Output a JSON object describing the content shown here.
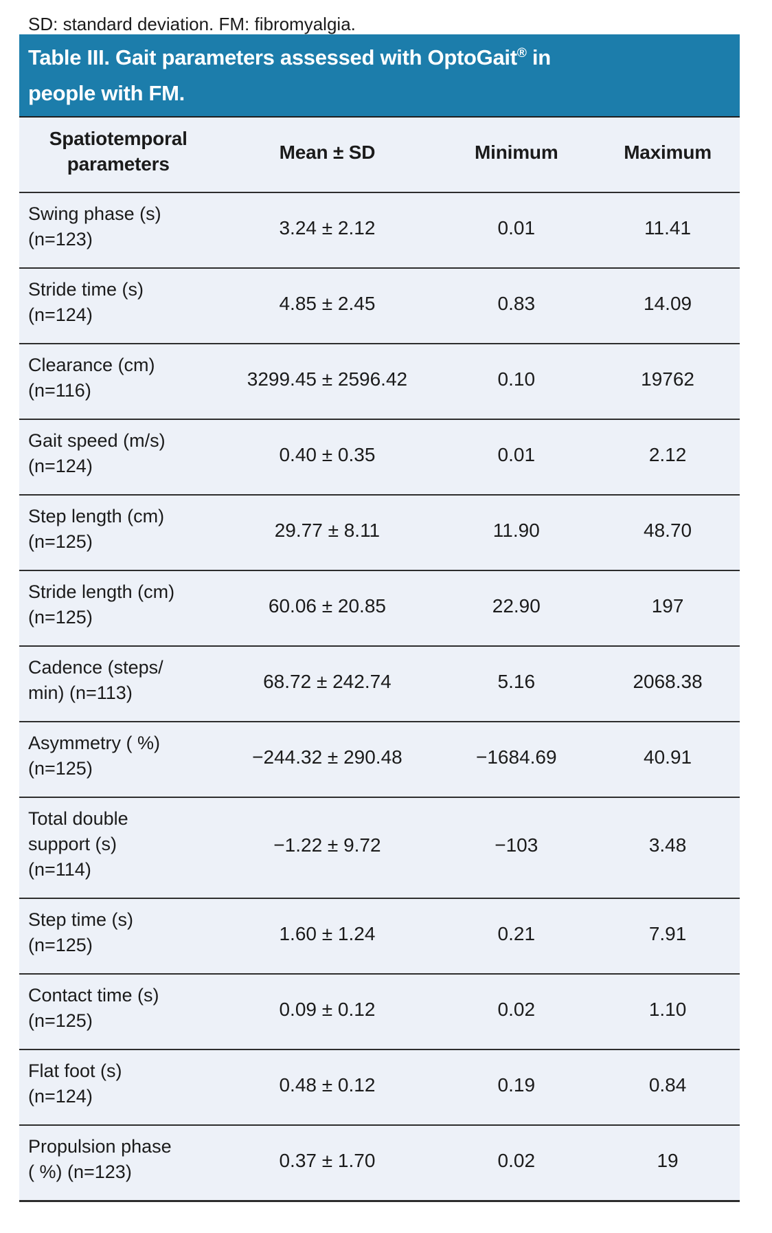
{
  "title": {
    "pre": "Table III. Gait parameters assessed with OptoGait",
    "sup": "®",
    "post": " in",
    "line2": "people with FM."
  },
  "header": {
    "param": [
      "Spatiotemporal",
      "parameters"
    ],
    "mean": "Mean ± SD",
    "min": "Minimum",
    "max": "Maximum"
  },
  "rows": [
    {
      "param": [
        "Swing phase (s)",
        "(n=123)"
      ],
      "mean": "3.24 ± 2.12",
      "min": "0.01",
      "max": "11.41"
    },
    {
      "param": [
        "Stride time (s)",
        "(n=124)"
      ],
      "mean": "4.85 ± 2.45",
      "min": "0.83",
      "max": "14.09"
    },
    {
      "param": [
        "Clearance (cm)",
        "(n=116)"
      ],
      "mean": "3299.45 ± 2596.42",
      "min": "0.10",
      "max": "19762"
    },
    {
      "param": [
        "Gait speed (m/s)",
        "(n=124)"
      ],
      "mean": "0.40 ± 0.35",
      "min": "0.01",
      "max": "2.12"
    },
    {
      "param": [
        "Step length (cm)",
        "(n=125)"
      ],
      "mean": "29.77 ± 8.11",
      "min": "11.90",
      "max": "48.70"
    },
    {
      "param": [
        "Stride length (cm)",
        "(n=125)"
      ],
      "mean": "60.06 ± 20.85",
      "min": "22.90",
      "max": "197"
    },
    {
      "param": [
        "Cadence (steps/",
        "min) (n=113)"
      ],
      "mean": "68.72 ± 242.74",
      "min": "5.16",
      "max": "2068.38"
    },
    {
      "param": [
        "Asymmetry ( %)",
        "(n=125)"
      ],
      "mean": "−244.32 ± 290.48",
      "min": "−1684.69",
      "max": "40.91"
    },
    {
      "param": [
        "Total double",
        "support (s)",
        "(n=114)"
      ],
      "mean": "−1.22 ± 9.72",
      "min": "−103",
      "max": "3.48"
    },
    {
      "param": [
        "Step time (s)",
        "(n=125)"
      ],
      "mean": "1.60 ± 1.24",
      "min": "0.21",
      "max": "7.91"
    },
    {
      "param": [
        "Contact time (s)",
        "(n=125)"
      ],
      "mean": "0.09 ± 0.12",
      "min": "0.02",
      "max": "1.10"
    },
    {
      "param": [
        "Flat foot (s)",
        "(n=124)"
      ],
      "mean": "0.48 ± 0.12",
      "min": "0.19",
      "max": "0.84"
    },
    {
      "param": [
        "Propulsion phase",
        "( %) (n=123)"
      ],
      "mean": "0.37 ± 1.70",
      "min": "0.02",
      "max": "19"
    }
  ],
  "footnote": "SD: standard deviation. FM: fibromyalgia.",
  "colors": {
    "header_bg": "#1c7dab",
    "body_bg": "#edf1f8",
    "text": "#1b1b1b",
    "divider": "#2d2d2d",
    "title_text": "#ffffff"
  }
}
